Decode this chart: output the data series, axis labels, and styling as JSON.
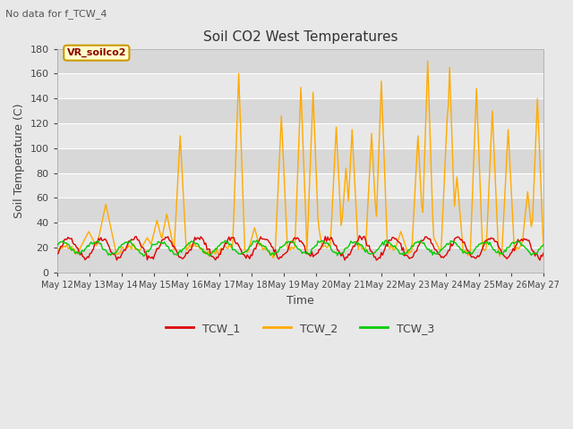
{
  "title": "Soil CO2 West Temperatures",
  "subtitle": "No data for f_TCW_4",
  "xlabel": "Time",
  "ylabel": "Soil Temperature (C)",
  "ylim": [
    0,
    180
  ],
  "legend_label": "VR_soilco2",
  "fig_bg": "#e8e8e8",
  "plot_bg": "#e8e8e8",
  "band_light": "#ebebeb",
  "band_dark": "#d8d8d8",
  "tick_labels": [
    "May 12",
    "May 13",
    "May 14",
    "May 15",
    "May 16",
    "May 17",
    "May 18",
    "May 19",
    "May 20",
    "May 21",
    "May 22",
    "May 23",
    "May 24",
    "May 25",
    "May 26",
    "May 27"
  ],
  "TCW1_color": "#dd0000",
  "TCW2_color": "#ffaa00",
  "TCW3_color": "#00cc00"
}
